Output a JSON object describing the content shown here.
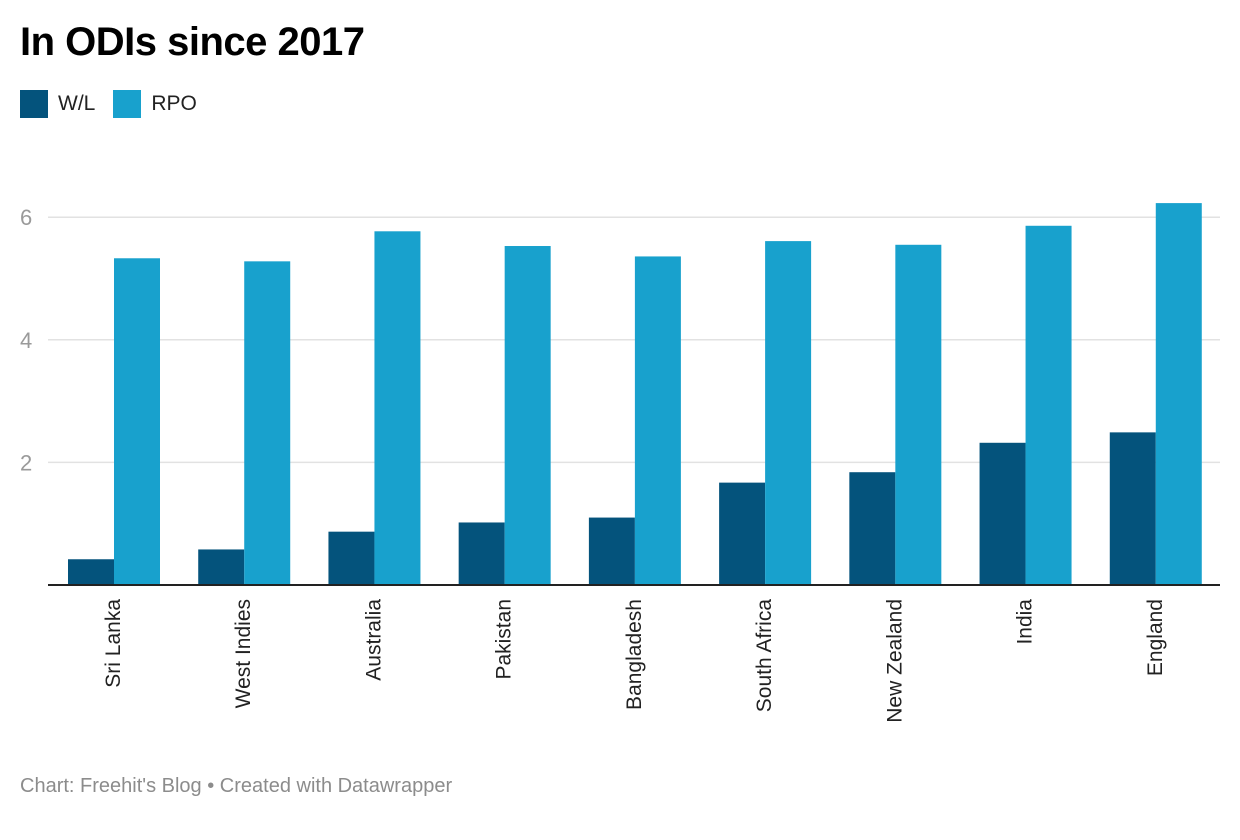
{
  "title": "In ODIs since 2017",
  "footer": "Chart: Freehit's Blog • Created with Datawrapper",
  "colors": {
    "wl": "#04537c",
    "rpo": "#18a1cd",
    "grid": "#e2e2e2",
    "axis": "#222222",
    "tick": "#9a9a9a"
  },
  "chart_data": {
    "type": "bar",
    "title": "In ODIs since 2017",
    "xlabel": "",
    "ylabel": "",
    "ylim": [
      0,
      6.5
    ],
    "yticks": [
      2,
      4,
      6
    ],
    "grid": true,
    "legend_position": "top-left",
    "categories": [
      "Sri Lanka",
      "West Indies",
      "Australia",
      "Pakistan",
      "Bangladesh",
      "South Africa",
      "New Zealand",
      "India",
      "England"
    ],
    "series": [
      {
        "name": "W/L",
        "values": [
          0.42,
          0.58,
          0.87,
          1.02,
          1.1,
          1.67,
          1.84,
          2.32,
          2.49
        ]
      },
      {
        "name": "RPO",
        "values": [
          5.33,
          5.28,
          5.77,
          5.53,
          5.36,
          5.61,
          5.55,
          5.86,
          6.23
        ]
      }
    ]
  }
}
